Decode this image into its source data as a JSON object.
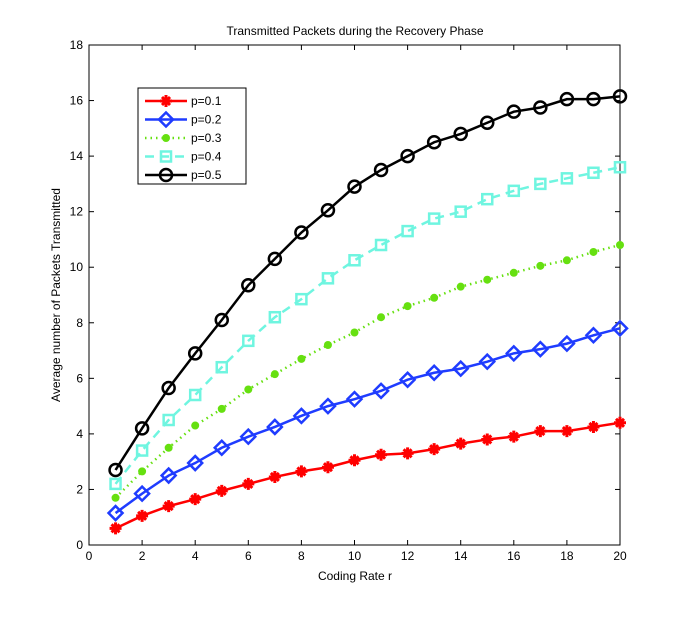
{
  "chart_data": {
    "type": "line",
    "title": "Transmitted Packets during the Recovery Phase",
    "xlabel": "Coding Rate r",
    "ylabel": "Average number of Packets Transmitted",
    "xlim": [
      0,
      20
    ],
    "ylim": [
      0,
      18
    ],
    "xticks": [
      0,
      2,
      4,
      6,
      8,
      10,
      12,
      14,
      16,
      18,
      20
    ],
    "yticks": [
      0,
      2,
      4,
      6,
      8,
      10,
      12,
      14,
      16,
      18
    ],
    "grid": false,
    "legend_position": "top-left",
    "x": [
      1,
      2,
      3,
      4,
      5,
      6,
      7,
      8,
      9,
      10,
      11,
      12,
      13,
      14,
      15,
      16,
      17,
      18,
      19,
      20
    ],
    "series": [
      {
        "name": "p=0.1",
        "color": "#ff0000",
        "marker": "asterisk",
        "dash": "solid",
        "values": [
          0.6,
          1.05,
          1.4,
          1.65,
          1.95,
          2.2,
          2.45,
          2.65,
          2.8,
          3.05,
          3.25,
          3.3,
          3.45,
          3.65,
          3.8,
          3.9,
          4.1,
          4.1,
          4.25,
          4.4
        ]
      },
      {
        "name": "p=0.2",
        "color": "#1f3cff",
        "marker": "diamond",
        "dash": "solid",
        "values": [
          1.15,
          1.85,
          2.5,
          2.95,
          3.5,
          3.9,
          4.25,
          4.65,
          5.0,
          5.25,
          5.55,
          5.95,
          6.2,
          6.35,
          6.6,
          6.9,
          7.05,
          7.25,
          7.55,
          7.8
        ]
      },
      {
        "name": "p=0.3",
        "color": "#66e010",
        "marker": "dot",
        "dash": "dotted",
        "values": [
          1.7,
          2.65,
          3.5,
          4.3,
          4.9,
          5.6,
          6.15,
          6.7,
          7.2,
          7.65,
          8.2,
          8.6,
          8.9,
          9.3,
          9.55,
          9.8,
          10.05,
          10.25,
          10.55,
          10.8
        ]
      },
      {
        "name": "p=0.4",
        "color": "#6ff5e0",
        "marker": "square",
        "dash": "dashed",
        "values": [
          2.2,
          3.4,
          4.5,
          5.4,
          6.4,
          7.35,
          8.2,
          8.85,
          9.6,
          10.25,
          10.8,
          11.3,
          11.75,
          12.0,
          12.45,
          12.75,
          13.0,
          13.2,
          13.4,
          13.6
        ]
      },
      {
        "name": "p=0.5",
        "color": "#000000",
        "marker": "circle",
        "dash": "solid",
        "values": [
          2.7,
          4.2,
          5.65,
          6.9,
          8.1,
          9.35,
          10.3,
          11.25,
          12.05,
          12.9,
          13.5,
          14.0,
          14.5,
          14.8,
          15.2,
          15.6,
          15.75,
          16.05,
          16.05,
          16.15
        ]
      }
    ]
  }
}
